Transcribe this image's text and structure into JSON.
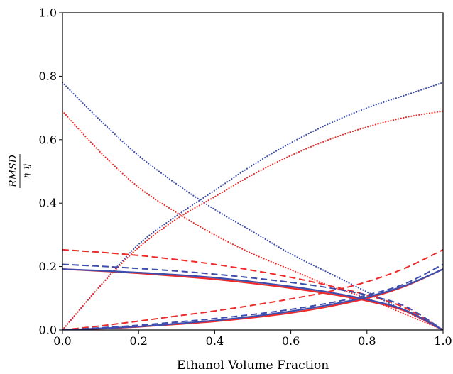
{
  "chart_data": {
    "type": "line",
    "xlabel": "Ethanol Volume Fraction",
    "ylabel_numerator": "RMSD",
    "ylabel_denominator": "η_ij",
    "xlim": [
      0.0,
      1.0
    ],
    "ylim": [
      0.0,
      1.0
    ],
    "xticks": [
      "0.0",
      "0.2",
      "0.4",
      "0.6",
      "0.8",
      "1.0"
    ],
    "yticks": [
      "0.0",
      "0.2",
      "0.4",
      "0.6",
      "0.8",
      "1.0"
    ],
    "grid": false,
    "legend": "none",
    "colors": {
      "red": "#ee2b2b",
      "blue": "#3d4dad"
    },
    "x": [
      0.0,
      0.1,
      0.2,
      0.3,
      0.4,
      0.5,
      0.6,
      0.7,
      0.8,
      0.9,
      1.0
    ],
    "series": [
      {
        "color": "blue",
        "style": "dotted",
        "values": [
          0.78,
          0.66,
          0.55,
          0.46,
          0.38,
          0.31,
          0.24,
          0.18,
          0.12,
          0.06,
          0.0
        ]
      },
      {
        "color": "blue",
        "style": "dotted",
        "values": [
          0.0,
          0.14,
          0.27,
          0.36,
          0.44,
          0.52,
          0.59,
          0.65,
          0.7,
          0.74,
          0.78
        ]
      },
      {
        "color": "red",
        "style": "dotted",
        "values": [
          0.69,
          0.56,
          0.45,
          0.37,
          0.3,
          0.24,
          0.19,
          0.14,
          0.1,
          0.05,
          0.0
        ]
      },
      {
        "color": "red",
        "style": "dotted",
        "values": [
          0.0,
          0.14,
          0.26,
          0.35,
          0.42,
          0.49,
          0.55,
          0.6,
          0.64,
          0.67,
          0.69
        ]
      },
      {
        "color": "red",
        "style": "dashed",
        "values": [
          0.253,
          0.245,
          0.235,
          0.222,
          0.207,
          0.188,
          0.166,
          0.14,
          0.11,
          0.07,
          0.0
        ]
      },
      {
        "color": "red",
        "style": "dashed",
        "values": [
          0.0,
          0.013,
          0.028,
          0.044,
          0.06,
          0.078,
          0.098,
          0.121,
          0.152,
          0.195,
          0.253
        ]
      },
      {
        "color": "blue",
        "style": "dashed",
        "values": [
          0.207,
          0.201,
          0.194,
          0.186,
          0.176,
          0.164,
          0.15,
          0.133,
          0.11,
          0.075,
          0.0
        ]
      },
      {
        "color": "blue",
        "style": "dashed",
        "values": [
          0.0,
          0.007,
          0.015,
          0.025,
          0.036,
          0.049,
          0.065,
          0.085,
          0.11,
          0.146,
          0.207
        ]
      },
      {
        "color": "red",
        "style": "solid",
        "values": [
          0.192,
          0.186,
          0.179,
          0.17,
          0.16,
          0.147,
          0.132,
          0.114,
          0.092,
          0.06,
          0.0
        ]
      },
      {
        "color": "red",
        "style": "solid",
        "values": [
          0.0,
          0.004,
          0.01,
          0.018,
          0.027,
          0.039,
          0.054,
          0.074,
          0.1,
          0.138,
          0.192
        ]
      },
      {
        "color": "blue",
        "style": "solid",
        "values": [
          0.192,
          0.187,
          0.181,
          0.174,
          0.165,
          0.152,
          0.137,
          0.119,
          0.096,
          0.063,
          0.0
        ]
      },
      {
        "color": "blue",
        "style": "solid",
        "values": [
          0.0,
          0.005,
          0.011,
          0.02,
          0.03,
          0.043,
          0.059,
          0.079,
          0.104,
          0.14,
          0.192
        ]
      }
    ]
  }
}
